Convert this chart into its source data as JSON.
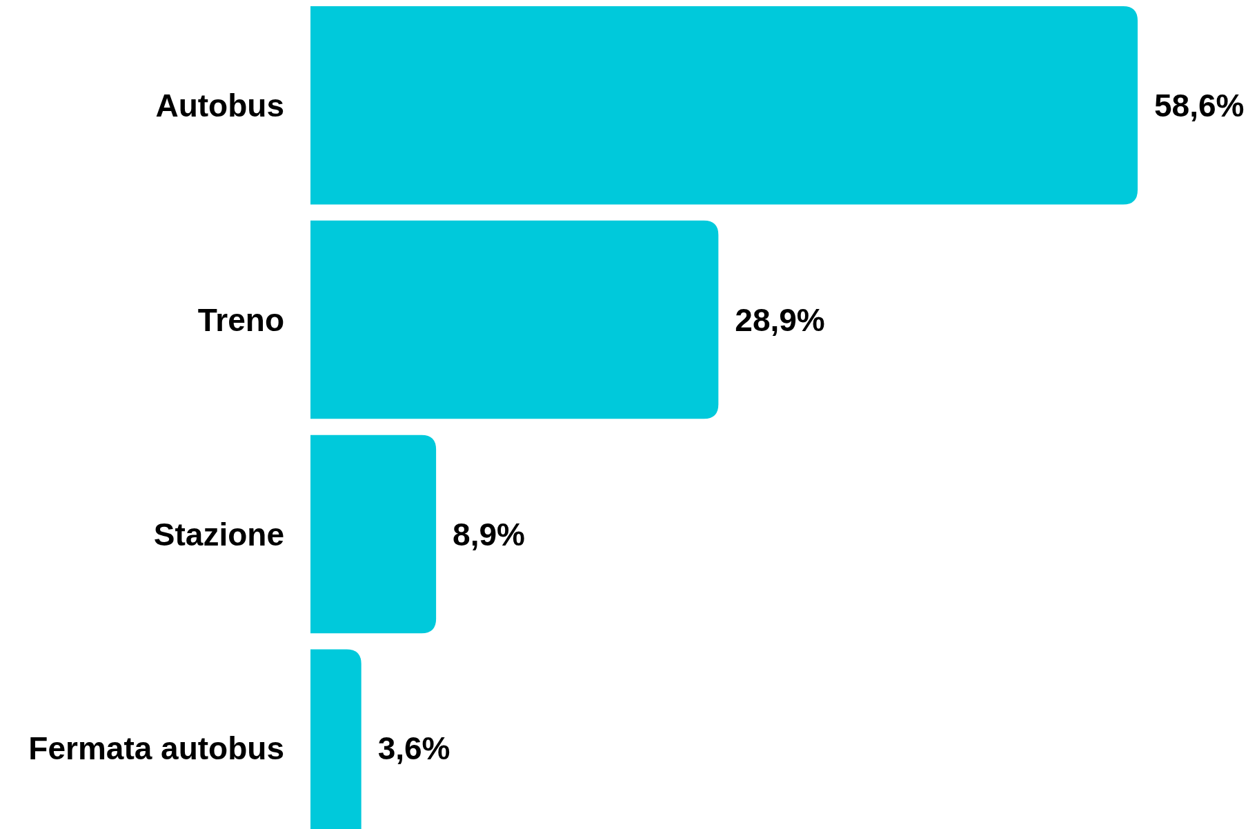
{
  "chart_data": {
    "type": "bar",
    "orientation": "horizontal",
    "categories": [
      "Autobus",
      "Treno",
      "Stazione",
      "Fermata autobus"
    ],
    "values": [
      58.6,
      28.9,
      8.9,
      3.6
    ],
    "color": "#00c9db",
    "value_labels": [
      "58,6%",
      "28,9%",
      "8,9%",
      "3,6%"
    ]
  }
}
